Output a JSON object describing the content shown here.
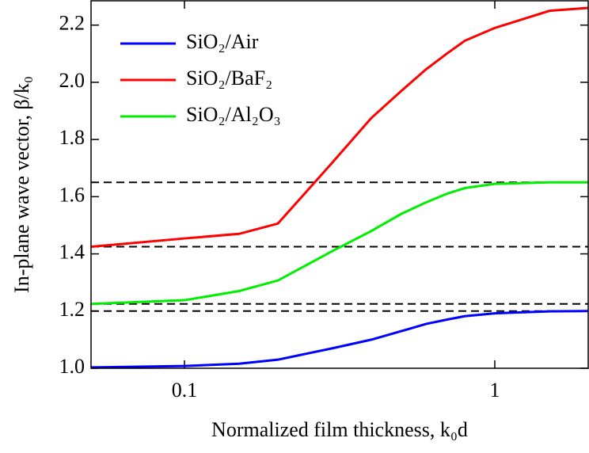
{
  "chart_data": {
    "type": "line",
    "xlabel": "Normalized film thickness, k₀d",
    "ylabel": "In-plane wave vector, β/k₀",
    "x": [
      0.05,
      0.1,
      0.15,
      0.2,
      0.3,
      0.4,
      0.5,
      0.6,
      0.7,
      0.8,
      1,
      1.5,
      2
    ],
    "series": [
      {
        "name": "SiO₂/Air",
        "color": "#0000ff",
        "values": [
          1.003,
          1.008,
          1.016,
          1.03,
          1.07,
          1.1,
          1.13,
          1.155,
          1.17,
          1.182,
          1.192,
          1.199,
          1.2
        ]
      },
      {
        "name": "SiO₂/BaF₂",
        "color": "#ff0000",
        "values": [
          1.425,
          1.454,
          1.47,
          1.506,
          1.72,
          1.875,
          1.97,
          2.045,
          2.1,
          2.145,
          2.19,
          2.25,
          2.26
        ]
      },
      {
        "name": "SiO₂/Al₂O₃",
        "color": "#00ee00",
        "values": [
          1.225,
          1.238,
          1.27,
          1.307,
          1.41,
          1.48,
          1.54,
          1.58,
          1.61,
          1.63,
          1.645,
          1.65,
          1.65
        ]
      }
    ],
    "reference_lines": [
      1.2,
      1.225,
      1.425,
      1.65
    ],
    "reference_color": "#000000",
    "xlim": [
      0.05,
      2
    ],
    "xscale": "log",
    "xticks": [
      0.1,
      1
    ],
    "ylim": [
      1.0,
      2.285
    ],
    "yticks": [
      {
        "value": 1.0,
        "label": "1.0"
      },
      1.2,
      1.4,
      1.6,
      1.8,
      {
        "value": 2.0,
        "label": "2.0"
      },
      2.2
    ],
    "legend": "upper left",
    "grid": false
  }
}
